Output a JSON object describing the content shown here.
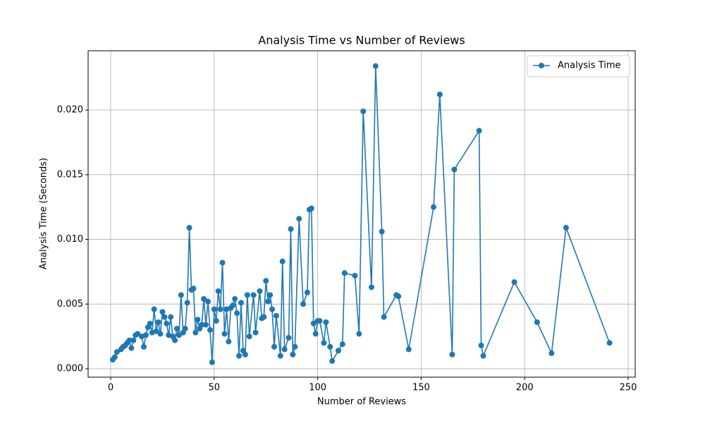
{
  "chart_data": {
    "type": "line",
    "title": "Analysis Time vs Number of Reviews",
    "xlabel": "Number of Reviews",
    "ylabel": "Analysis Time (Seconds)",
    "x": [
      1,
      2,
      3,
      5,
      6,
      7,
      8,
      9,
      10,
      11,
      12,
      13,
      15,
      16,
      17,
      18,
      19,
      20,
      21,
      22,
      23,
      24,
      25,
      26,
      27,
      28,
      29,
      30,
      31,
      32,
      33,
      34,
      35,
      36,
      37,
      38,
      39,
      40,
      41,
      42,
      43,
      44,
      45,
      46,
      47,
      48,
      49,
      50,
      51,
      52,
      53,
      54,
      55,
      56,
      57,
      58,
      59,
      60,
      61,
      62,
      63,
      64,
      65,
      66,
      67,
      69,
      70,
      72,
      73,
      74,
      75,
      76,
      77,
      78,
      79,
      80,
      82,
      83,
      84,
      86,
      87,
      88,
      89,
      91,
      93,
      95,
      96,
      97,
      98,
      99,
      100,
      101,
      103,
      104,
      106,
      107,
      110,
      112,
      113,
      118,
      120,
      122,
      126,
      128,
      131,
      132,
      138,
      139,
      144,
      156,
      159,
      165,
      166,
      178,
      179,
      180,
      195,
      206,
      213,
      220,
      241
    ],
    "series": [
      {
        "name": "Analysis Time",
        "color": "#1f77b4",
        "values": [
          0.0007,
          0.0009,
          0.0013,
          0.0015,
          0.0017,
          0.0018,
          0.002,
          0.0022,
          0.0016,
          0.0022,
          0.0026,
          0.0027,
          0.0025,
          0.0017,
          0.0026,
          0.0032,
          0.0035,
          0.0028,
          0.0046,
          0.0029,
          0.0036,
          0.0027,
          0.0044,
          0.004,
          0.0035,
          0.0026,
          0.004,
          0.0025,
          0.0022,
          0.0031,
          0.0026,
          0.0057,
          0.0028,
          0.0031,
          0.0051,
          0.0109,
          0.0061,
          0.0062,
          0.0028,
          0.0038,
          0.0031,
          0.0034,
          0.0054,
          0.0034,
          0.0052,
          0.003,
          0.0005,
          0.0046,
          0.0037,
          0.006,
          0.0046,
          0.0082,
          0.0027,
          0.0046,
          0.0021,
          0.0047,
          0.0049,
          0.0054,
          0.0043,
          0.001,
          0.0051,
          0.0014,
          0.0011,
          0.0057,
          0.0025,
          0.0057,
          0.0028,
          0.006,
          0.0039,
          0.004,
          0.0068,
          0.0052,
          0.0057,
          0.0046,
          0.0017,
          0.0041,
          0.001,
          0.0083,
          0.0015,
          0.0024,
          0.0108,
          0.0011,
          0.0017,
          0.0116,
          0.005,
          0.0059,
          0.0123,
          0.0124,
          0.0035,
          0.0027,
          0.0037,
          0.0037,
          0.002,
          0.0036,
          0.0017,
          0.0006,
          0.0014,
          0.0019,
          0.0074,
          0.0072,
          0.0027,
          0.0199,
          0.0063,
          0.0234,
          0.0106,
          0.004,
          0.0057,
          0.0056,
          0.0015,
          0.0125,
          0.0212,
          0.0011,
          0.0154,
          0.0184,
          0.0018,
          0.001,
          0.0067,
          0.0036,
          0.0012,
          0.0109,
          0.002
        ]
      }
    ],
    "xlim": [
      -10.9,
      253.4
    ],
    "ylim": [
      -0.00065,
      0.02458
    ],
    "xticks": [
      0,
      50,
      100,
      150,
      200,
      250
    ],
    "yticks": [
      {
        "value": 0,
        "label": "0.000"
      },
      {
        "value": 0.005,
        "label": "0.005"
      },
      {
        "value": 0.01,
        "label": "0.010"
      },
      {
        "value": 0.015,
        "label": "0.015"
      },
      {
        "value": 0.02,
        "label": "0.020"
      }
    ],
    "grid": true,
    "legend": "upper right"
  }
}
